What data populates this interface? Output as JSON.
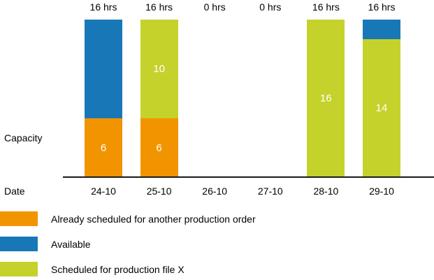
{
  "chart_data": {
    "type": "bar",
    "stacked": true,
    "title": "",
    "xlabel": "Date",
    "ylabel": "Capacity",
    "unit": "hrs",
    "categories": [
      "24-10",
      "25-10",
      "26-10",
      "27-10",
      "28-10",
      "29-10"
    ],
    "top_labels": [
      "16 hrs",
      "16 hrs",
      "0 hrs",
      "0 hrs",
      "16 hrs",
      "16 hrs"
    ],
    "ylim": [
      0,
      16
    ],
    "grid": false,
    "legend_position": "bottom-left",
    "series": [
      {
        "name": "Already scheduled for another production order",
        "color": "#F29400",
        "values": [
          6,
          6,
          0,
          0,
          0,
          0
        ],
        "data_labels": [
          "6",
          "6",
          "",
          "",
          "",
          ""
        ]
      },
      {
        "name": "Scheduled for production file X",
        "color": "#C5D22B",
        "values": [
          0,
          10,
          0,
          0,
          16,
          14
        ],
        "data_labels": [
          "",
          "10",
          "",
          "",
          "16",
          "14"
        ]
      },
      {
        "name": "Available",
        "color": "#1878B7",
        "values": [
          10,
          0,
          0,
          0,
          0,
          2
        ],
        "data_labels": [
          "",
          "",
          "",
          "",
          "",
          ""
        ]
      }
    ]
  },
  "legend": {
    "items": [
      {
        "label": "Already scheduled for another production order",
        "color": "#F29400"
      },
      {
        "label": "Available",
        "color": "#1878B7"
      },
      {
        "label": "Scheduled for production file X",
        "color": "#C5D22B"
      }
    ]
  }
}
